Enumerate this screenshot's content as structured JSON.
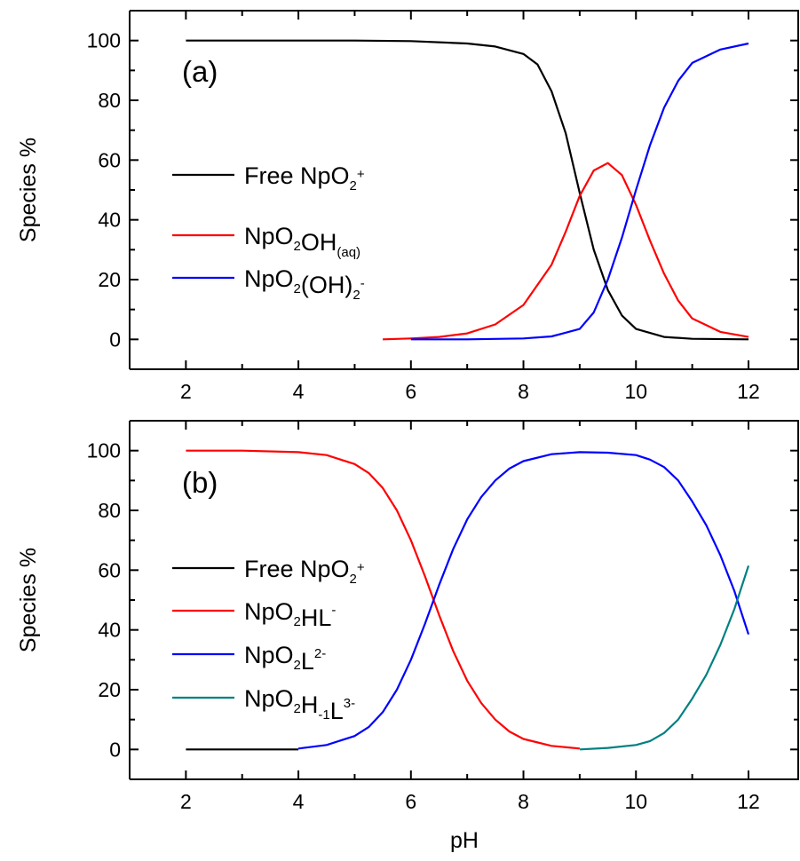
{
  "colors": {
    "free": "#000000",
    "red": "#ff0000",
    "blue": "#0000ff",
    "teal": "#008080",
    "axis": "#000000"
  },
  "x_axis_title": "pH",
  "chart_data": [
    {
      "type": "line",
      "panel_label": "(a)",
      "xlabel": "pH",
      "ylabel": "Species %",
      "xlim": [
        1.0,
        12.9
      ],
      "ylim": [
        -10,
        110
      ],
      "xticks": [
        2,
        4,
        6,
        8,
        10,
        12
      ],
      "yticks": [
        0,
        20,
        40,
        60,
        80,
        100
      ],
      "grid": false,
      "legend_position": "left",
      "series": [
        {
          "name": "Free NpO2+",
          "label_parts": [
            {
              "t": "Free NpO"
            },
            {
              "t": "2",
              "pos": "sub"
            },
            {
              "t": "+",
              "pos": "sup"
            }
          ],
          "color_key": "free",
          "points": [
            [
              2.0,
              100.0
            ],
            [
              5.0,
              100.0
            ],
            [
              6.0,
              99.8
            ],
            [
              7.0,
              99.0
            ],
            [
              7.5,
              98.0
            ],
            [
              8.0,
              95.5
            ],
            [
              8.25,
              92.0
            ],
            [
              8.5,
              83.0
            ],
            [
              8.75,
              69.0
            ],
            [
              9.0,
              49.0
            ],
            [
              9.25,
              30.0
            ],
            [
              9.5,
              16.5
            ],
            [
              9.75,
              8.0
            ],
            [
              10.0,
              3.5
            ],
            [
              10.5,
              0.8
            ],
            [
              11.0,
              0.2
            ],
            [
              12.0,
              0.0
            ]
          ]
        },
        {
          "name": "NpO2OH(aq)",
          "label_parts": [
            {
              "t": "NpO"
            },
            {
              "t": "2",
              "pos": "sub"
            },
            {
              "t": "OH"
            },
            {
              "t": "(aq)",
              "pos": "sub"
            }
          ],
          "color_key": "red",
          "points": [
            [
              5.5,
              0.0
            ],
            [
              6.0,
              0.3
            ],
            [
              6.5,
              0.8
            ],
            [
              7.0,
              2.0
            ],
            [
              7.5,
              5.0
            ],
            [
              8.0,
              11.5
            ],
            [
              8.5,
              25.0
            ],
            [
              8.75,
              36.0
            ],
            [
              9.0,
              48.0
            ],
            [
              9.25,
              56.5
            ],
            [
              9.5,
              59.0
            ],
            [
              9.75,
              55.0
            ],
            [
              10.0,
              45.0
            ],
            [
              10.25,
              33.0
            ],
            [
              10.5,
              22.0
            ],
            [
              10.75,
              13.0
            ],
            [
              11.0,
              7.0
            ],
            [
              11.5,
              2.5
            ],
            [
              12.0,
              0.8
            ]
          ]
        },
        {
          "name": "NpO2(OH)2-",
          "label_parts": [
            {
              "t": "NpO"
            },
            {
              "t": "2",
              "pos": "sub"
            },
            {
              "t": "(OH)"
            },
            {
              "t": "2",
              "pos": "sub"
            },
            {
              "t": "-",
              "pos": "sup"
            }
          ],
          "color_key": "blue",
          "points": [
            [
              6.0,
              0.0
            ],
            [
              7.0,
              0.0
            ],
            [
              8.0,
              0.3
            ],
            [
              8.5,
              1.0
            ],
            [
              9.0,
              3.5
            ],
            [
              9.25,
              9.0
            ],
            [
              9.5,
              20.0
            ],
            [
              9.75,
              34.0
            ],
            [
              10.0,
              50.0
            ],
            [
              10.25,
              65.0
            ],
            [
              10.5,
              77.5
            ],
            [
              10.75,
              86.5
            ],
            [
              11.0,
              92.5
            ],
            [
              11.5,
              97.0
            ],
            [
              12.0,
              99.0
            ]
          ]
        }
      ]
    },
    {
      "type": "line",
      "panel_label": "(b)",
      "xlabel": "pH",
      "ylabel": "Species %",
      "xlim": [
        1.0,
        12.9
      ],
      "ylim": [
        -10,
        110
      ],
      "xticks": [
        2,
        4,
        6,
        8,
        10,
        12
      ],
      "yticks": [
        0,
        20,
        40,
        60,
        80,
        100
      ],
      "grid": false,
      "legend_position": "left",
      "series": [
        {
          "name": "Free NpO2+",
          "label_parts": [
            {
              "t": "Free NpO"
            },
            {
              "t": "2",
              "pos": "sub"
            },
            {
              "t": "+",
              "pos": "sup"
            }
          ],
          "color_key": "free",
          "points": [
            [
              2.0,
              0.0
            ],
            [
              4.0,
              0.0
            ]
          ]
        },
        {
          "name": "NpO2HL-",
          "label_parts": [
            {
              "t": "NpO"
            },
            {
              "t": "2",
              "pos": "sub"
            },
            {
              "t": "HL"
            },
            {
              "t": "-",
              "pos": "sup"
            }
          ],
          "color_key": "red",
          "points": [
            [
              2.0,
              100.0
            ],
            [
              3.0,
              100.0
            ],
            [
              4.0,
              99.5
            ],
            [
              4.5,
              98.5
            ],
            [
              5.0,
              95.5
            ],
            [
              5.25,
              92.5
            ],
            [
              5.5,
              87.5
            ],
            [
              5.75,
              80.0
            ],
            [
              6.0,
              70.0
            ],
            [
              6.25,
              58.0
            ],
            [
              6.5,
              45.0
            ],
            [
              6.75,
              33.0
            ],
            [
              7.0,
              23.0
            ],
            [
              7.25,
              15.5
            ],
            [
              7.5,
              10.0
            ],
            [
              7.75,
              6.0
            ],
            [
              8.0,
              3.5
            ],
            [
              8.5,
              1.2
            ],
            [
              9.0,
              0.3
            ]
          ]
        },
        {
          "name": "NpO2L2-",
          "label_parts": [
            {
              "t": "NpO"
            },
            {
              "t": "2",
              "pos": "sub"
            },
            {
              "t": "L"
            },
            {
              "t": "2-",
              "pos": "sup"
            }
          ],
          "color_key": "blue",
          "points": [
            [
              4.0,
              0.3
            ],
            [
              4.5,
              1.5
            ],
            [
              5.0,
              4.5
            ],
            [
              5.25,
              7.5
            ],
            [
              5.5,
              12.5
            ],
            [
              5.75,
              20.0
            ],
            [
              6.0,
              30.0
            ],
            [
              6.25,
              42.0
            ],
            [
              6.5,
              55.0
            ],
            [
              6.75,
              67.0
            ],
            [
              7.0,
              77.0
            ],
            [
              7.25,
              84.5
            ],
            [
              7.5,
              90.0
            ],
            [
              7.75,
              94.0
            ],
            [
              8.0,
              96.5
            ],
            [
              8.5,
              98.8
            ],
            [
              9.0,
              99.5
            ],
            [
              9.5,
              99.3
            ],
            [
              10.0,
              98.5
            ],
            [
              10.25,
              97.0
            ],
            [
              10.5,
              94.5
            ],
            [
              10.75,
              90.0
            ],
            [
              11.0,
              83.0
            ],
            [
              11.25,
              75.0
            ],
            [
              11.5,
              65.0
            ],
            [
              11.75,
              53.0
            ],
            [
              12.0,
              38.5
            ]
          ]
        },
        {
          "name": "NpO2H-1L3-",
          "label_parts": [
            {
              "t": "NpO"
            },
            {
              "t": "2",
              "pos": "sub"
            },
            {
              "t": "H"
            },
            {
              "t": "-1",
              "pos": "sub"
            },
            {
              "t": "L"
            },
            {
              "t": "3-",
              "pos": "sup"
            }
          ],
          "color_key": "teal",
          "points": [
            [
              9.0,
              0.0
            ],
            [
              9.5,
              0.5
            ],
            [
              10.0,
              1.5
            ],
            [
              10.25,
              2.8
            ],
            [
              10.5,
              5.5
            ],
            [
              10.75,
              10.0
            ],
            [
              11.0,
              17.0
            ],
            [
              11.25,
              25.0
            ],
            [
              11.5,
              35.0
            ],
            [
              11.75,
              47.0
            ],
            [
              12.0,
              61.5
            ]
          ]
        }
      ]
    }
  ]
}
